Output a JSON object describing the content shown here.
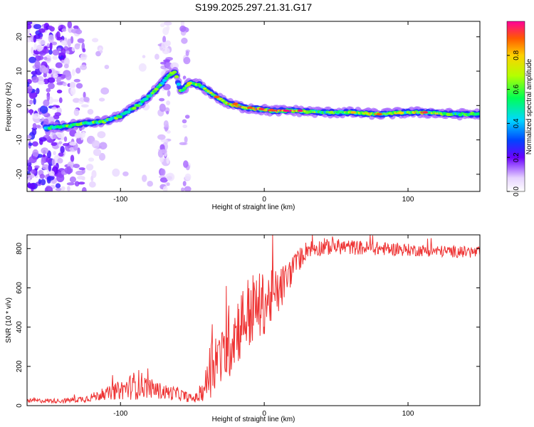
{
  "title": "S199.2025.297.21.31.G17",
  "chart_data": [
    {
      "type": "heatmap",
      "xlabel": "Height of straight line (km)",
      "ylabel": "Frequency (Hz)",
      "xlim": [
        -165,
        150
      ],
      "ylim": [
        -25,
        24.5
      ],
      "xticks": [
        -100,
        0,
        100
      ],
      "yticks": [
        -20,
        -10,
        0,
        10,
        20
      ],
      "colorbar": {
        "label": "Normalized spectral amplitude",
        "range": [
          0.0,
          1.0
        ],
        "ticks": [
          0.0,
          0.2,
          0.4,
          0.6,
          0.8
        ],
        "tick_labels": [
          "0.0",
          "0.2",
          "0.4",
          "0.6",
          "0.8"
        ]
      },
      "ridge": [
        {
          "x": -150,
          "y": -6.5,
          "a": 0.45
        },
        {
          "x": -140,
          "y": -6.2,
          "a": 0.45
        },
        {
          "x": -130,
          "y": -5.5,
          "a": 0.45
        },
        {
          "x": -120,
          "y": -5.0,
          "a": 0.45
        },
        {
          "x": -110,
          "y": -4.5,
          "a": 0.45
        },
        {
          "x": -100,
          "y": -3.0,
          "a": 0.45
        },
        {
          "x": -92,
          "y": -1.0,
          "a": 0.5
        },
        {
          "x": -85,
          "y": 1.0,
          "a": 0.55
        },
        {
          "x": -78,
          "y": 3.5,
          "a": 0.6
        },
        {
          "x": -72,
          "y": 6.0,
          "a": 0.6
        },
        {
          "x": -68,
          "y": 8.0,
          "a": 0.6
        },
        {
          "x": -62,
          "y": 10.0,
          "a": 0.55
        },
        {
          "x": -58,
          "y": 4.0,
          "a": 0.5
        },
        {
          "x": -52,
          "y": 6.5,
          "a": 0.7
        },
        {
          "x": -45,
          "y": 6.0,
          "a": 0.7
        },
        {
          "x": -40,
          "y": 4.5,
          "a": 0.7
        },
        {
          "x": -33,
          "y": 2.5,
          "a": 0.85
        },
        {
          "x": -25,
          "y": 0.5,
          "a": 0.85
        },
        {
          "x": -15,
          "y": -0.5,
          "a": 0.95
        },
        {
          "x": -5,
          "y": -1.0,
          "a": 0.95
        },
        {
          "x": 5,
          "y": -1.5,
          "a": 0.95
        },
        {
          "x": 20,
          "y": -1.5,
          "a": 0.95
        },
        {
          "x": 40,
          "y": -2.0,
          "a": 0.6
        },
        {
          "x": 60,
          "y": -2.0,
          "a": 0.7
        },
        {
          "x": 80,
          "y": -2.5,
          "a": 0.85
        },
        {
          "x": 100,
          "y": -2.0,
          "a": 0.75
        },
        {
          "x": 110,
          "y": -2.0,
          "a": 0.9
        },
        {
          "x": 130,
          "y": -2.5,
          "a": 0.6
        },
        {
          "x": 150,
          "y": -2.5,
          "a": 0.6
        }
      ]
    },
    {
      "type": "line",
      "xlabel": "Height of straight line (km)",
      "ylabel": "SNR (10 * v/v)",
      "xlim": [
        -165,
        150
      ],
      "ylim": [
        0,
        870
      ],
      "xticks": [
        -100,
        0,
        100
      ],
      "yticks": [
        0,
        200,
        400,
        600,
        800
      ],
      "series": [
        {
          "name": "SNR",
          "color": "#ee3333",
          "envelope": [
            {
              "x": -165,
              "mean": 25,
              "amp": 10
            },
            {
              "x": -140,
              "mean": 25,
              "amp": 12
            },
            {
              "x": -125,
              "mean": 35,
              "amp": 18
            },
            {
              "x": -110,
              "mean": 60,
              "amp": 30
            },
            {
              "x": -95,
              "mean": 90,
              "amp": 60
            },
            {
              "x": -88,
              "mean": 110,
              "amp": 80
            },
            {
              "x": -80,
              "mean": 90,
              "amp": 50
            },
            {
              "x": -70,
              "mean": 70,
              "amp": 40
            },
            {
              "x": -60,
              "mean": 60,
              "amp": 35
            },
            {
              "x": -50,
              "mean": 35,
              "amp": 20
            },
            {
              "x": -45,
              "mean": 45,
              "amp": 30
            },
            {
              "x": -40,
              "mean": 120,
              "amp": 90
            },
            {
              "x": -35,
              "mean": 250,
              "amp": 200
            },
            {
              "x": -30,
              "mean": 230,
              "amp": 140
            },
            {
              "x": -25,
              "mean": 320,
              "amp": 200
            },
            {
              "x": -20,
              "mean": 380,
              "amp": 180
            },
            {
              "x": -10,
              "mean": 480,
              "amp": 200
            },
            {
              "x": 0,
              "mean": 520,
              "amp": 160
            },
            {
              "x": 10,
              "mean": 580,
              "amp": 120
            },
            {
              "x": 20,
              "mean": 700,
              "amp": 70
            },
            {
              "x": 30,
              "mean": 800,
              "amp": 45
            },
            {
              "x": 50,
              "mean": 810,
              "amp": 40
            },
            {
              "x": 80,
              "mean": 800,
              "amp": 35
            },
            {
              "x": 110,
              "mean": 790,
              "amp": 30
            },
            {
              "x": 150,
              "mean": 780,
              "amp": 30
            }
          ]
        }
      ]
    }
  ]
}
